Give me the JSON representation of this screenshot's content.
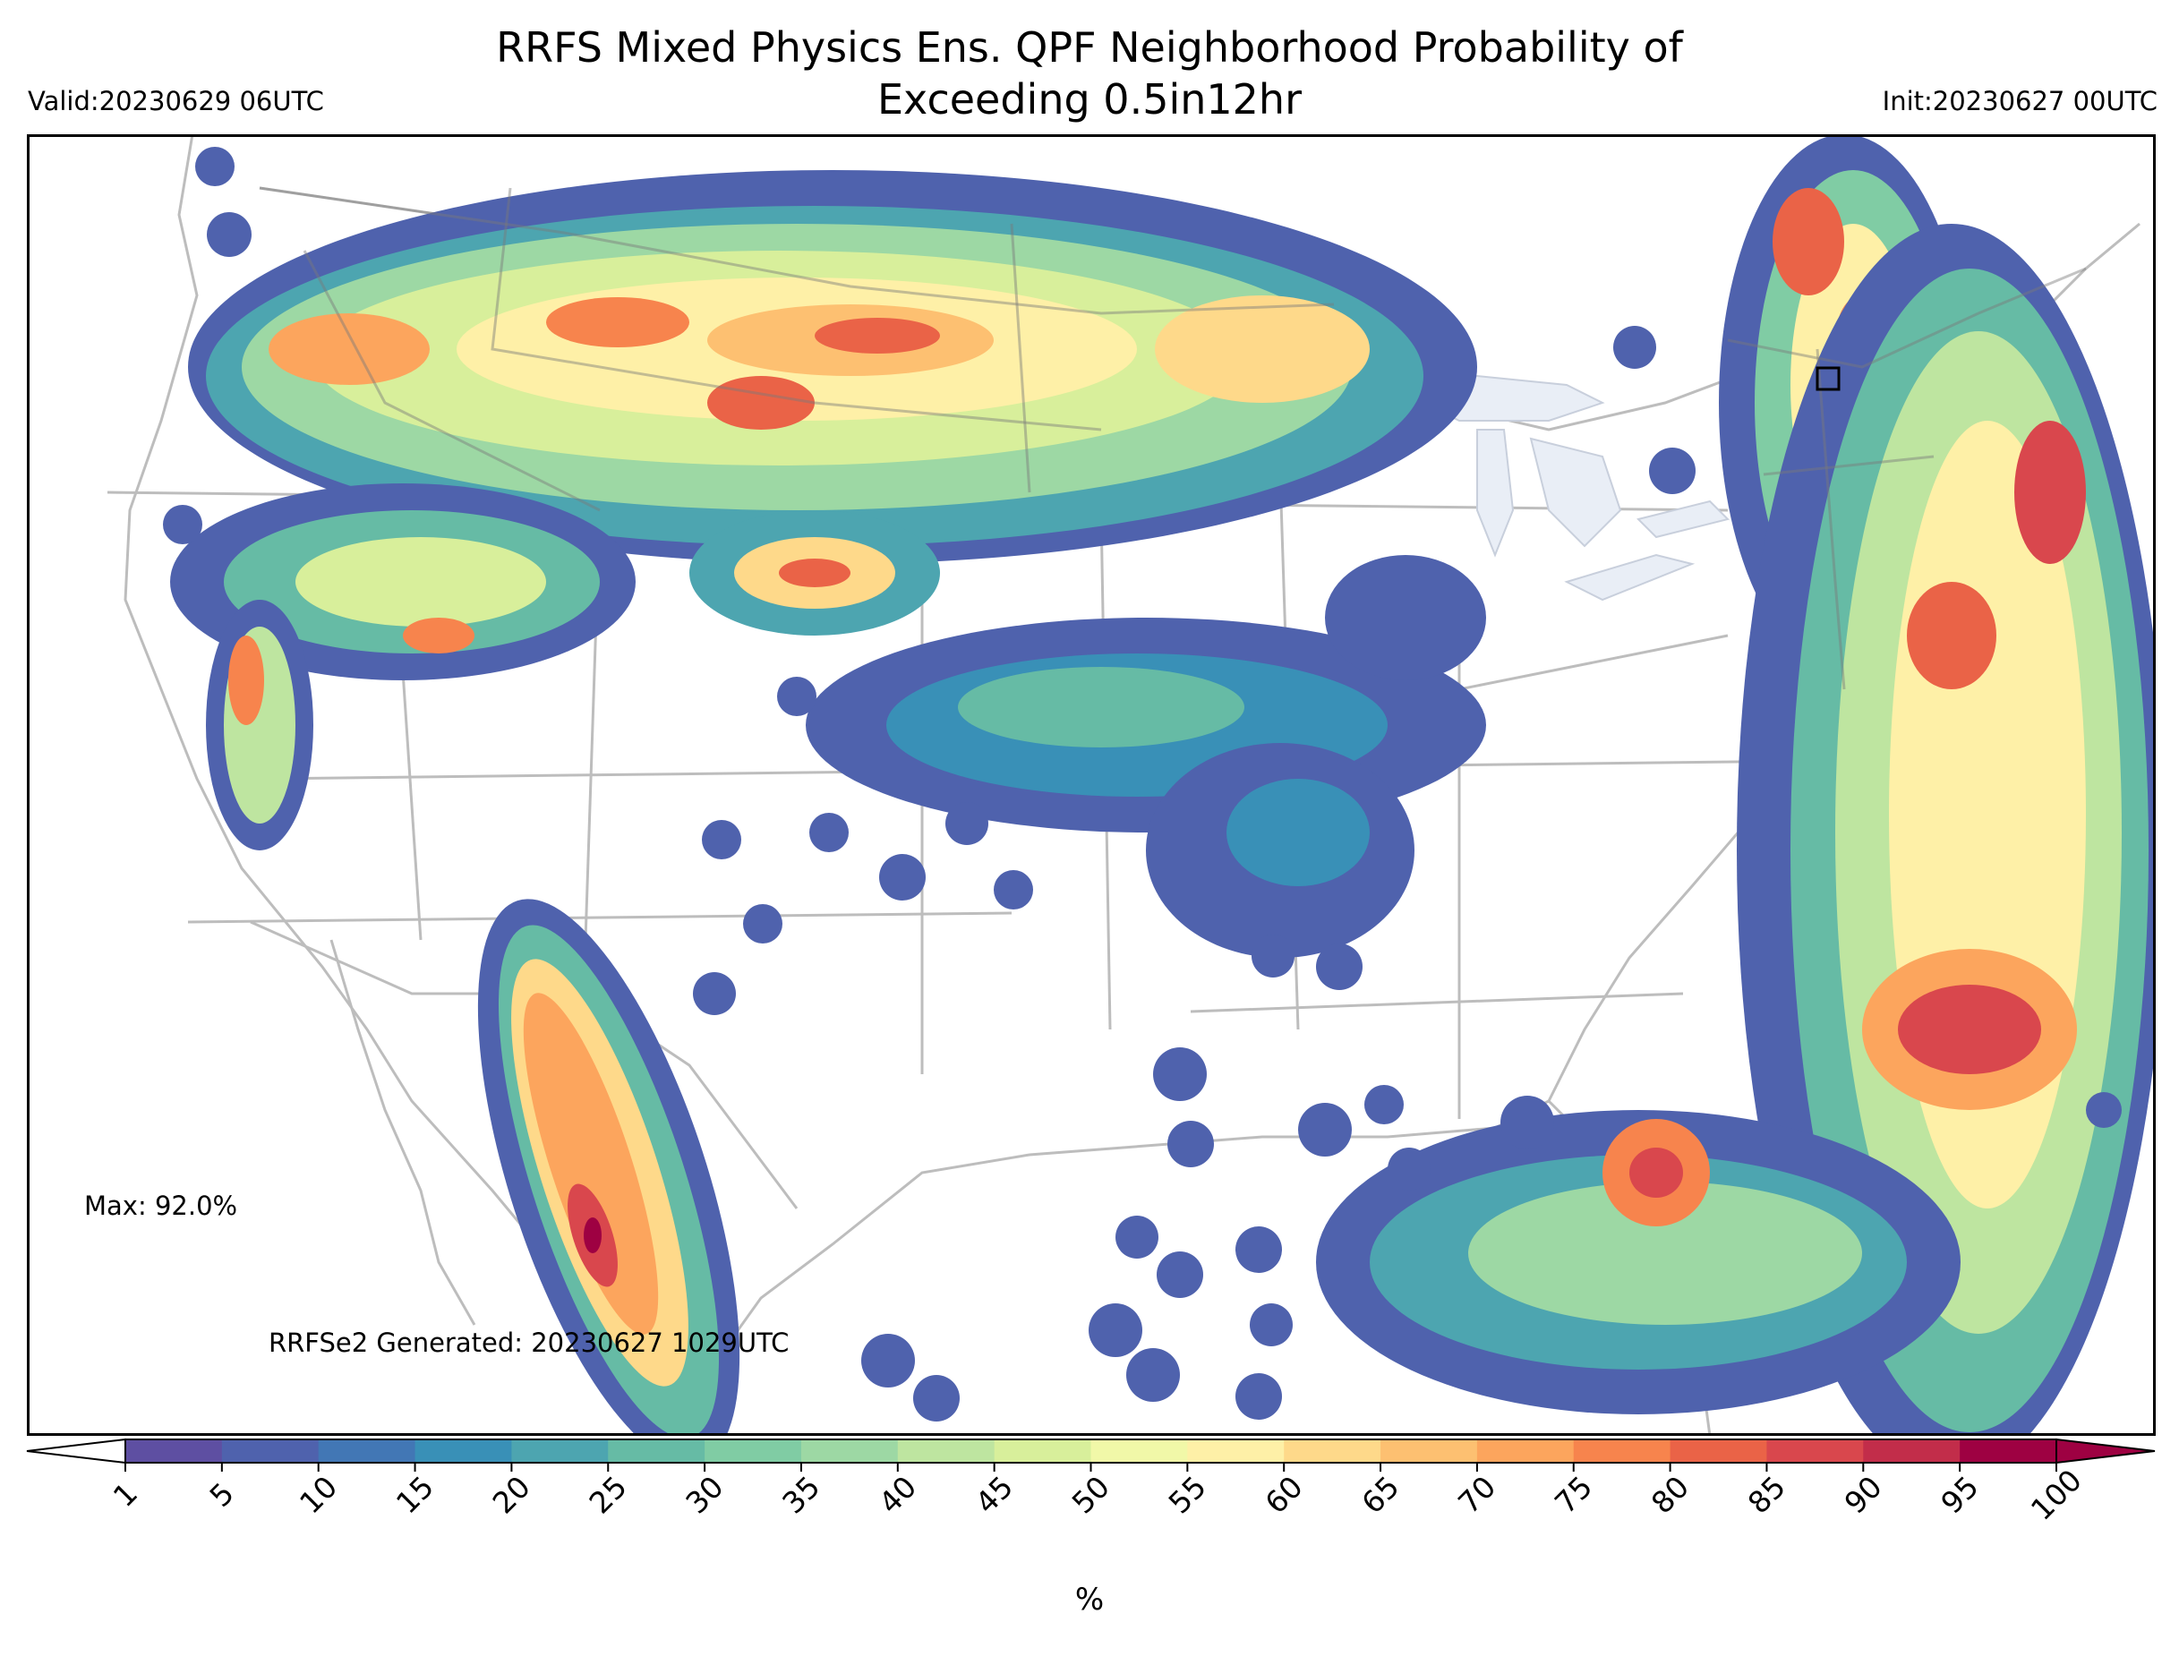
{
  "header": {
    "title_line1": "RRFS Mixed Physics Ens. QPF Neighborhood Probability of",
    "title_line2": "Exceeding 0.5in12hr",
    "valid": "Valid:20230629 06UTC",
    "init": "Init:20230627 00UTC"
  },
  "annotations": {
    "max": "Max: 92.0%",
    "generated": "RRFSe2 Generated: 20230627 1029UTC"
  },
  "colorbar": {
    "unit_label": "%",
    "ticks": [
      "1",
      "5",
      "10",
      "15",
      "20",
      "25",
      "30",
      "35",
      "40",
      "45",
      "50",
      "55",
      "60",
      "65",
      "70",
      "75",
      "80",
      "85",
      "90",
      "95",
      "100"
    ],
    "colors": [
      "#5e4fa2",
      "#4f62ad",
      "#4277b5",
      "#3990b7",
      "#4da5b0",
      "#66bba5",
      "#80cca4",
      "#9dd8a4",
      "#bee5a0",
      "#d8ef9b",
      "#f1f8a8",
      "#fef0a7",
      "#fed98a",
      "#fdc071",
      "#fca55d",
      "#f7844d",
      "#ea6347",
      "#d9474d",
      "#c22d4a",
      "#9e0142"
    ],
    "extend_low_color": "#ffffff",
    "extend_high_color": "#9e0142"
  },
  "map": {
    "background": "#ffffff",
    "boundary_color": "#bdbdbd",
    "lake_color": "#e9eef6",
    "region": "CONUS"
  }
}
